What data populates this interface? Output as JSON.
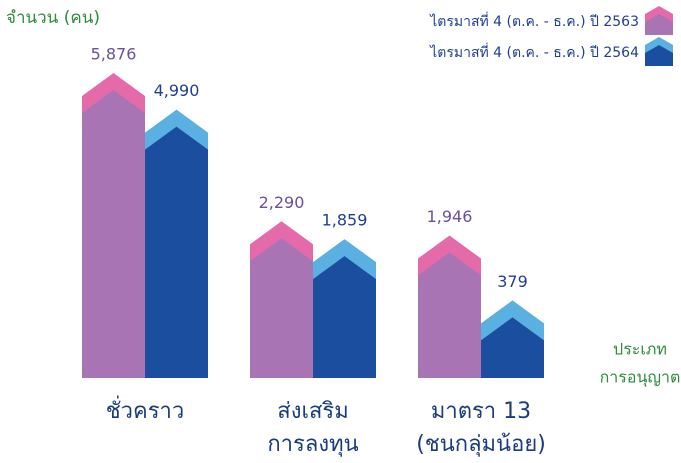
{
  "chart_data": {
    "type": "bar",
    "y_label": "จำนวน (คน)",
    "x_label": [
      "ประเภท",
      "การอนุญาต"
    ],
    "categories": [
      [
        "ชั่วคราว"
      ],
      [
        "ส่งเสริม",
        "การลงทุน"
      ],
      [
        "มาตรา 13",
        "(ชนกลุ่มน้อย)"
      ]
    ],
    "series": [
      {
        "name": "ไตรมาสที่ 4 (ต.ค. - ธ.ค.) ปี 2563",
        "color": "#a874b4",
        "roof_color": "#e46aaa",
        "label_color": "#6b4fa0",
        "values": [
          5876,
          2290,
          1946
        ],
        "value_labels": [
          "5,876",
          "2,290",
          "1,946"
        ]
      },
      {
        "name": "ไตรมาสที่ 4 (ต.ค. - ธ.ค.) ปี 2564",
        "color": "#1b4e9f",
        "roof_color": "#5bb0e2",
        "label_color": "#1f3f8f",
        "values": [
          4990,
          1859,
          379
        ],
        "value_labels": [
          "4,990",
          "1,859",
          "379"
        ]
      }
    ],
    "legend": "top-right"
  }
}
